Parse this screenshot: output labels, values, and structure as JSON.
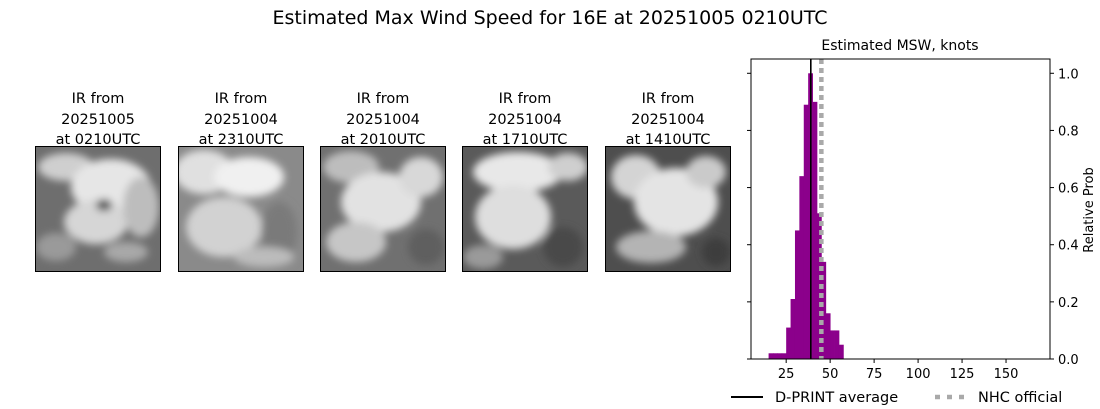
{
  "title": "Estimated Max Wind Speed for 16E at 20251005 0210UTC",
  "ir_panels": [
    {
      "line1": "IR from",
      "line2": "20251005",
      "line3": "at 0210UTC"
    },
    {
      "line1": "IR from",
      "line2": "20251004",
      "line3": "at 2310UTC"
    },
    {
      "line1": "IR from",
      "line2": "20251004",
      "line3": "at 2010UTC"
    },
    {
      "line1": "IR from",
      "line2": "20251004",
      "line3": "at 1710UTC"
    },
    {
      "line1": "IR from",
      "line2": "20251004",
      "line3": "at 1410UTC"
    }
  ],
  "chart_data": {
    "type": "bar",
    "title": "Estimated MSW, knots",
    "xlabel": "",
    "ylabel": "Relative Prob",
    "xlim": [
      5,
      175
    ],
    "ylim": [
      0,
      1.05
    ],
    "xticks": [
      25,
      50,
      75,
      100,
      125,
      150
    ],
    "yticks": [
      0.0,
      0.2,
      0.4,
      0.6,
      0.8,
      1.0
    ],
    "yticks_labels": [
      "0.0",
      "0.2",
      "0.4",
      "0.6",
      "0.8",
      "1.0"
    ],
    "bar_color": "#8b008b",
    "bins": [
      {
        "x0": 15,
        "x1": 17.5,
        "value": 0.02
      },
      {
        "x0": 17.5,
        "x1": 20,
        "value": 0.02
      },
      {
        "x0": 20,
        "x1": 22.5,
        "value": 0.02
      },
      {
        "x0": 22.5,
        "x1": 25,
        "value": 0.02
      },
      {
        "x0": 25,
        "x1": 27.5,
        "value": 0.11
      },
      {
        "x0": 27.5,
        "x1": 30,
        "value": 0.21
      },
      {
        "x0": 30,
        "x1": 32.5,
        "value": 0.45
      },
      {
        "x0": 32.5,
        "x1": 35,
        "value": 0.64
      },
      {
        "x0": 35,
        "x1": 37.5,
        "value": 0.89
      },
      {
        "x0": 37.5,
        "x1": 40,
        "value": 1.0
      },
      {
        "x0": 40,
        "x1": 42.5,
        "value": 0.9
      },
      {
        "x0": 42.5,
        "x1": 45,
        "value": 0.51
      },
      {
        "x0": 45,
        "x1": 47.5,
        "value": 0.34
      },
      {
        "x0": 47.5,
        "x1": 50,
        "value": 0.16
      },
      {
        "x0": 50,
        "x1": 52.5,
        "value": 0.1
      },
      {
        "x0": 52.5,
        "x1": 55,
        "value": 0.1
      },
      {
        "x0": 55,
        "x1": 57.5,
        "value": 0.05
      }
    ],
    "dprint_average": 39,
    "nhc_official": 45,
    "dprint_color": "#000000",
    "nhc_color": "#a9a9a9",
    "legend": [
      {
        "label": "D-PRINT average",
        "style": "solid"
      },
      {
        "label": "NHC official",
        "style": "dotted"
      }
    ],
    "legend_placement": "bottom"
  }
}
